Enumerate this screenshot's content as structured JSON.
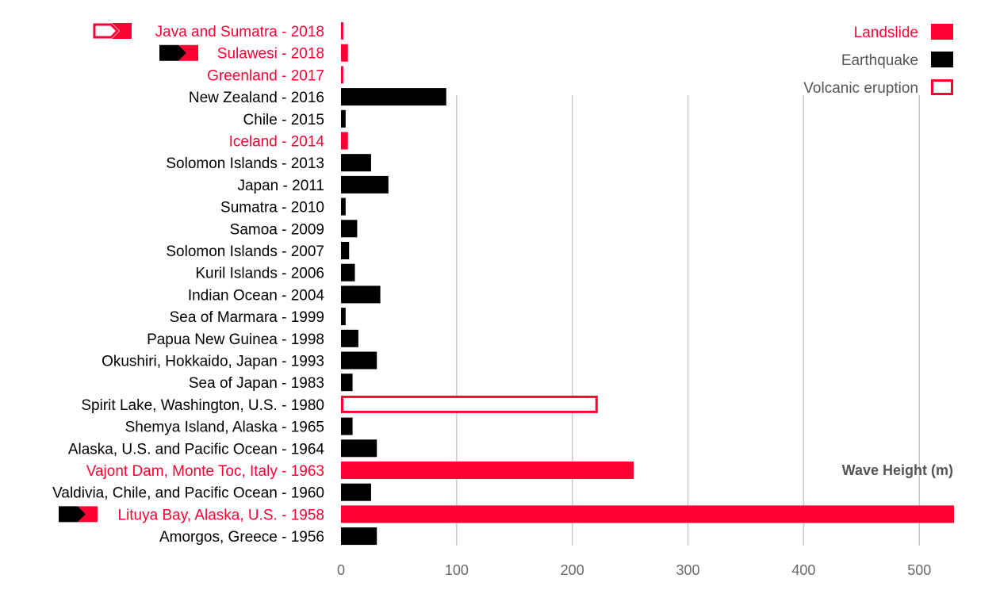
{
  "colors": {
    "landslide": "#ff0033",
    "earthquake": "#000000",
    "volcanic": "#ff0033",
    "grid": "#c8c8c8",
    "label_default": "#000000",
    "label_landslide": "#ff0033",
    "legend_text": "#555555"
  },
  "chart_data": {
    "type": "bar",
    "orientation": "horizontal",
    "xlabel": "Wave Height (m)",
    "xlim": [
      0,
      530
    ],
    "xticks": [
      0,
      100,
      200,
      300,
      400,
      500
    ],
    "grid": true,
    "legend_position": "top-right",
    "legend": [
      {
        "name": "Landslide",
        "type": "landslide"
      },
      {
        "name": "Earthquake",
        "type": "earthquake"
      },
      {
        "name": "Volcanic eruption",
        "type": "volcanic"
      }
    ],
    "categories": [
      "Java and Sumatra - 2018",
      "Sulawesi - 2018",
      "Greenland - 2017",
      "New Zealand - 2016",
      "Chile - 2015",
      "Iceland - 2014",
      "Solomon Islands - 2013",
      "Japan - 2011",
      "Sumatra - 2010",
      "Samoa - 2009",
      "Solomon Islands - 2007",
      "Kuril Islands - 2006",
      "Indian Ocean - 2004",
      "Sea of Marmara - 1999",
      "Papua New Guinea - 1998",
      "Okushiri, Hokkaido, Japan - 1993",
      "Sea of Japan - 1983",
      "Spirit Lake, Washington, U.S. - 1980",
      "Shemya Island, Alaska - 1965",
      "Alaska, U.S. and Pacific Ocean - 1964",
      "Vajont Dam, Monte Toc, Italy - 1963",
      "Valdivia, Chile, and Pacific Ocean - 1960",
      "Lituya Bay, Alaska, U.S. - 1958",
      "Amorgos, Greece - 1956"
    ],
    "values": [
      2,
      6,
      2,
      91,
      4,
      6,
      26,
      41,
      4,
      14,
      7,
      12,
      34,
      4,
      15,
      31,
      10,
      222,
      10,
      31,
      253,
      26,
      530,
      31
    ],
    "types": [
      "landslide",
      "landslide",
      "landslide",
      "earthquake",
      "earthquake",
      "landslide",
      "earthquake",
      "earthquake",
      "earthquake",
      "earthquake",
      "earthquake",
      "earthquake",
      "earthquake",
      "earthquake",
      "earthquake",
      "earthquake",
      "earthquake",
      "volcanic",
      "earthquake",
      "earthquake",
      "landslide",
      "earthquake",
      "landslide",
      "earthquake"
    ],
    "secondary_markers": [
      {
        "category_index": 0,
        "types": [
          "volcanic",
          "landslide"
        ]
      },
      {
        "category_index": 1,
        "types": [
          "earthquake",
          "landslide"
        ]
      },
      {
        "category_index": 22,
        "types": [
          "earthquake",
          "landslide"
        ]
      }
    ]
  }
}
